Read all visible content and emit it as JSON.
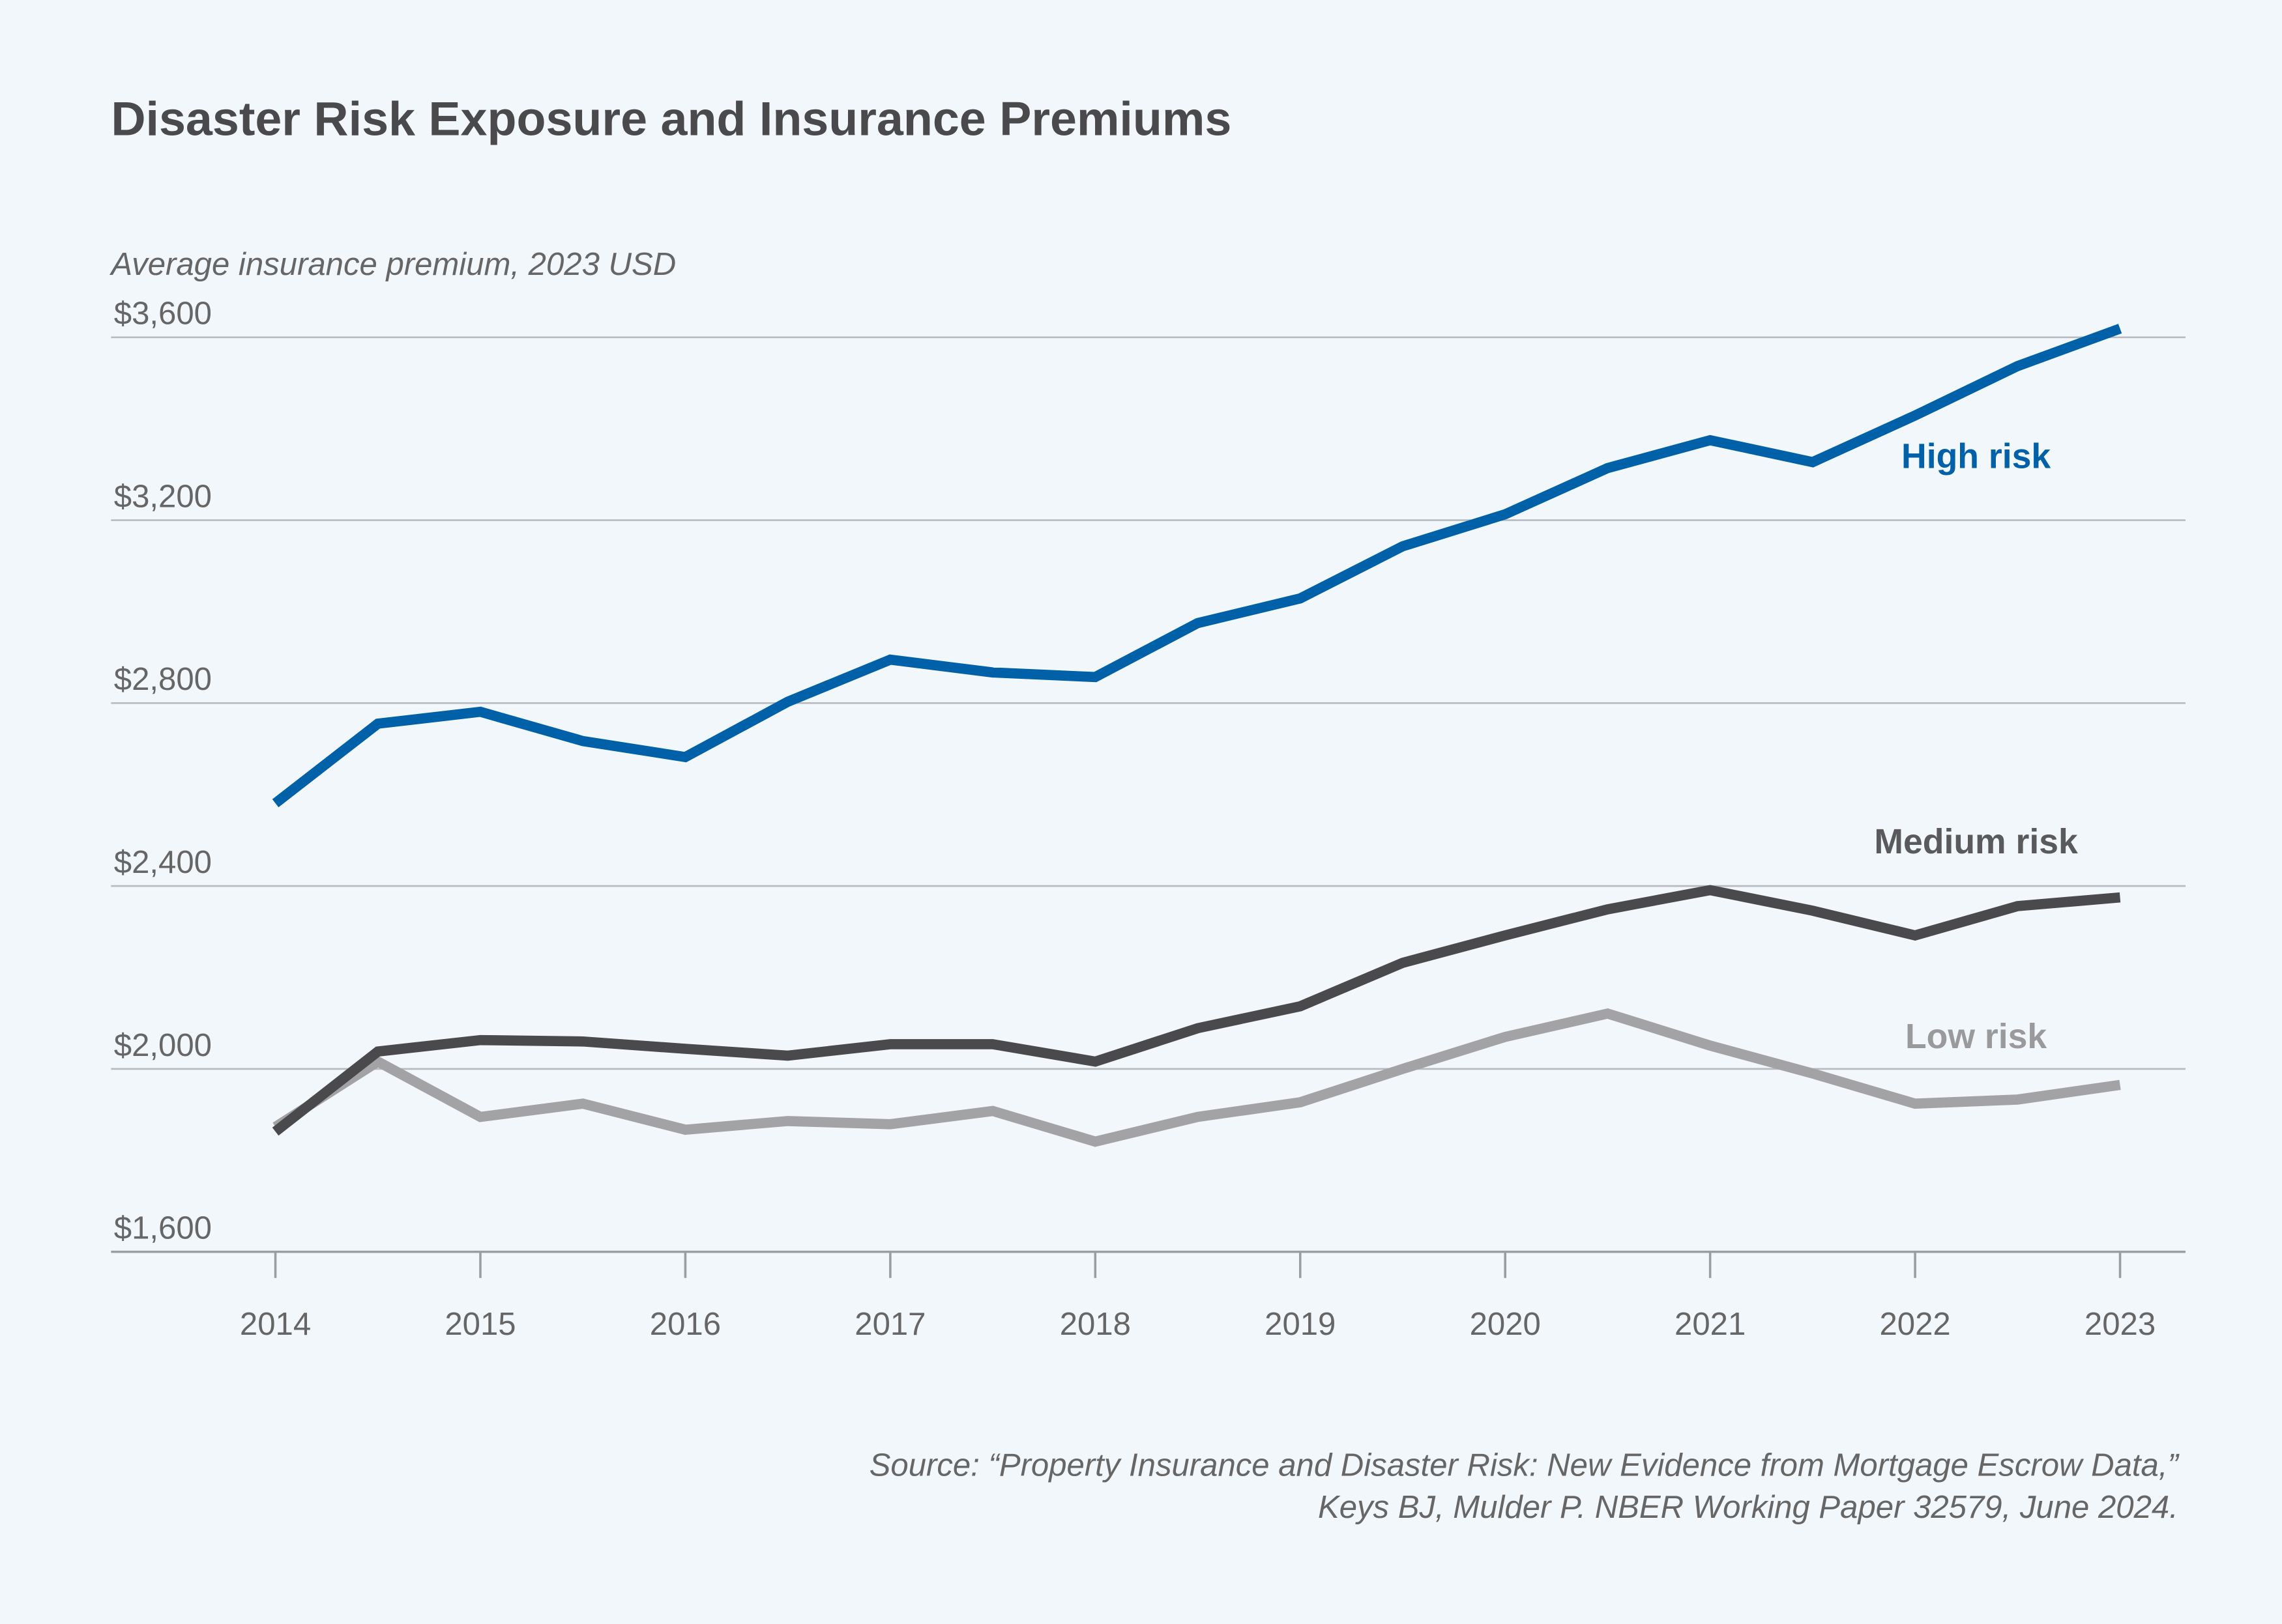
{
  "chart_data": {
    "type": "line",
    "title": "Disaster Risk Exposure and Insurance Premiums",
    "ylabel": "Average insurance premium, 2023 USD",
    "xlabel": "",
    "ylim": [
      1600,
      3600
    ],
    "yticks": [
      1600,
      2000,
      2400,
      2800,
      3200,
      3600
    ],
    "ytick_labels": [
      "$1,600",
      "$2,000",
      "$2,400",
      "$2,800",
      "$3,200",
      "$3,600"
    ],
    "xlim": [
      2014,
      2023
    ],
    "xticks": [
      2014,
      2015,
      2016,
      2017,
      2018,
      2019,
      2020,
      2021,
      2022,
      2023
    ],
    "xtick_labels": [
      "2014",
      "2015",
      "2016",
      "2017",
      "2018",
      "2019",
      "2020",
      "2021",
      "2022",
      "2023"
    ],
    "grid": "horizontal",
    "x": [
      2014,
      2014.5,
      2015,
      2015.5,
      2016,
      2016.5,
      2017,
      2017.5,
      2018,
      2018.5,
      2019,
      2019.5,
      2020,
      2020.5,
      2021,
      2021.5,
      2022,
      2022.5,
      2023
    ],
    "series": [
      {
        "name": "High risk",
        "color": "#0061a8",
        "values": [
          2581,
          2755,
          2781,
          2717,
          2682,
          2803,
          2895,
          2867,
          2857,
          2975,
          3029,
          3143,
          3213,
          3314,
          3375,
          3327,
          3429,
          3537,
          3619
        ]
      },
      {
        "name": "Medium risk",
        "color": "#4a4a4c",
        "values": [
          1863,
          2038,
          2063,
          2060,
          2044,
          2029,
          2054,
          2054,
          2016,
          2089,
          2137,
          2232,
          2292,
          2349,
          2391,
          2346,
          2292,
          2356,
          2375
        ]
      },
      {
        "name": "Low risk",
        "color": "#a3a3a5",
        "values": [
          1873,
          2016,
          1895,
          1924,
          1867,
          1886,
          1879,
          1908,
          1841,
          1895,
          1927,
          2000,
          2070,
          2121,
          2051,
          1990,
          1924,
          1933,
          1965
        ]
      }
    ],
    "legend": "inline labels at right",
    "source_line1": "Source: “Property Insurance and Disaster Risk: New Evidence from Mortgage Escrow Data,”",
    "source_line2": "Keys BJ, Mulder P. NBER Working Paper 32579, June 2024."
  },
  "colors": {
    "background": "#f2f7fb",
    "text": "#4a4a4c",
    "grid": "#b8bcc0"
  }
}
